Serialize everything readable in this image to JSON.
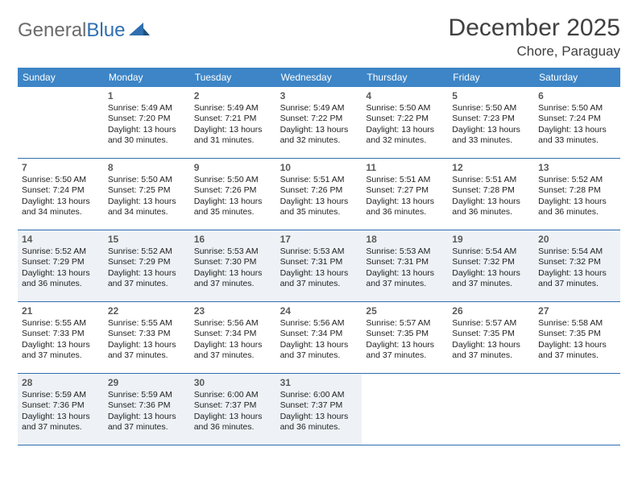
{
  "logo": {
    "text_general": "General",
    "text_blue": "Blue"
  },
  "header": {
    "month": "December 2025",
    "location": "Chore, Paraguay"
  },
  "colors": {
    "header_bar": "#3d85c6",
    "row_border": "#2f6fb0",
    "shaded_bg": "#eef2f6",
    "text": "#222222",
    "daynum": "#5a5a5a",
    "logo_gray": "#6b6b6b",
    "logo_blue": "#2f6fb0"
  },
  "day_names": [
    "Sunday",
    "Monday",
    "Tuesday",
    "Wednesday",
    "Thursday",
    "Friday",
    "Saturday"
  ],
  "weeks": [
    {
      "shaded": false,
      "days": [
        {
          "num": "",
          "lines": []
        },
        {
          "num": "1",
          "lines": [
            "Sunrise: 5:49 AM",
            "Sunset: 7:20 PM",
            "Daylight: 13 hours",
            "and 30 minutes."
          ]
        },
        {
          "num": "2",
          "lines": [
            "Sunrise: 5:49 AM",
            "Sunset: 7:21 PM",
            "Daylight: 13 hours",
            "and 31 minutes."
          ]
        },
        {
          "num": "3",
          "lines": [
            "Sunrise: 5:49 AM",
            "Sunset: 7:22 PM",
            "Daylight: 13 hours",
            "and 32 minutes."
          ]
        },
        {
          "num": "4",
          "lines": [
            "Sunrise: 5:50 AM",
            "Sunset: 7:22 PM",
            "Daylight: 13 hours",
            "and 32 minutes."
          ]
        },
        {
          "num": "5",
          "lines": [
            "Sunrise: 5:50 AM",
            "Sunset: 7:23 PM",
            "Daylight: 13 hours",
            "and 33 minutes."
          ]
        },
        {
          "num": "6",
          "lines": [
            "Sunrise: 5:50 AM",
            "Sunset: 7:24 PM",
            "Daylight: 13 hours",
            "and 33 minutes."
          ]
        }
      ]
    },
    {
      "shaded": false,
      "days": [
        {
          "num": "7",
          "lines": [
            "Sunrise: 5:50 AM",
            "Sunset: 7:24 PM",
            "Daylight: 13 hours",
            "and 34 minutes."
          ]
        },
        {
          "num": "8",
          "lines": [
            "Sunrise: 5:50 AM",
            "Sunset: 7:25 PM",
            "Daylight: 13 hours",
            "and 34 minutes."
          ]
        },
        {
          "num": "9",
          "lines": [
            "Sunrise: 5:50 AM",
            "Sunset: 7:26 PM",
            "Daylight: 13 hours",
            "and 35 minutes."
          ]
        },
        {
          "num": "10",
          "lines": [
            "Sunrise: 5:51 AM",
            "Sunset: 7:26 PM",
            "Daylight: 13 hours",
            "and 35 minutes."
          ]
        },
        {
          "num": "11",
          "lines": [
            "Sunrise: 5:51 AM",
            "Sunset: 7:27 PM",
            "Daylight: 13 hours",
            "and 36 minutes."
          ]
        },
        {
          "num": "12",
          "lines": [
            "Sunrise: 5:51 AM",
            "Sunset: 7:28 PM",
            "Daylight: 13 hours",
            "and 36 minutes."
          ]
        },
        {
          "num": "13",
          "lines": [
            "Sunrise: 5:52 AM",
            "Sunset: 7:28 PM",
            "Daylight: 13 hours",
            "and 36 minutes."
          ]
        }
      ]
    },
    {
      "shaded": true,
      "days": [
        {
          "num": "14",
          "lines": [
            "Sunrise: 5:52 AM",
            "Sunset: 7:29 PM",
            "Daylight: 13 hours",
            "and 36 minutes."
          ]
        },
        {
          "num": "15",
          "lines": [
            "Sunrise: 5:52 AM",
            "Sunset: 7:29 PM",
            "Daylight: 13 hours",
            "and 37 minutes."
          ]
        },
        {
          "num": "16",
          "lines": [
            "Sunrise: 5:53 AM",
            "Sunset: 7:30 PM",
            "Daylight: 13 hours",
            "and 37 minutes."
          ]
        },
        {
          "num": "17",
          "lines": [
            "Sunrise: 5:53 AM",
            "Sunset: 7:31 PM",
            "Daylight: 13 hours",
            "and 37 minutes."
          ]
        },
        {
          "num": "18",
          "lines": [
            "Sunrise: 5:53 AM",
            "Sunset: 7:31 PM",
            "Daylight: 13 hours",
            "and 37 minutes."
          ]
        },
        {
          "num": "19",
          "lines": [
            "Sunrise: 5:54 AM",
            "Sunset: 7:32 PM",
            "Daylight: 13 hours",
            "and 37 minutes."
          ]
        },
        {
          "num": "20",
          "lines": [
            "Sunrise: 5:54 AM",
            "Sunset: 7:32 PM",
            "Daylight: 13 hours",
            "and 37 minutes."
          ]
        }
      ]
    },
    {
      "shaded": false,
      "days": [
        {
          "num": "21",
          "lines": [
            "Sunrise: 5:55 AM",
            "Sunset: 7:33 PM",
            "Daylight: 13 hours",
            "and 37 minutes."
          ]
        },
        {
          "num": "22",
          "lines": [
            "Sunrise: 5:55 AM",
            "Sunset: 7:33 PM",
            "Daylight: 13 hours",
            "and 37 minutes."
          ]
        },
        {
          "num": "23",
          "lines": [
            "Sunrise: 5:56 AM",
            "Sunset: 7:34 PM",
            "Daylight: 13 hours",
            "and 37 minutes."
          ]
        },
        {
          "num": "24",
          "lines": [
            "Sunrise: 5:56 AM",
            "Sunset: 7:34 PM",
            "Daylight: 13 hours",
            "and 37 minutes."
          ]
        },
        {
          "num": "25",
          "lines": [
            "Sunrise: 5:57 AM",
            "Sunset: 7:35 PM",
            "Daylight: 13 hours",
            "and 37 minutes."
          ]
        },
        {
          "num": "26",
          "lines": [
            "Sunrise: 5:57 AM",
            "Sunset: 7:35 PM",
            "Daylight: 13 hours",
            "and 37 minutes."
          ]
        },
        {
          "num": "27",
          "lines": [
            "Sunrise: 5:58 AM",
            "Sunset: 7:35 PM",
            "Daylight: 13 hours",
            "and 37 minutes."
          ]
        }
      ]
    },
    {
      "shaded": true,
      "days": [
        {
          "num": "28",
          "lines": [
            "Sunrise: 5:59 AM",
            "Sunset: 7:36 PM",
            "Daylight: 13 hours",
            "and 37 minutes."
          ]
        },
        {
          "num": "29",
          "lines": [
            "Sunrise: 5:59 AM",
            "Sunset: 7:36 PM",
            "Daylight: 13 hours",
            "and 37 minutes."
          ]
        },
        {
          "num": "30",
          "lines": [
            "Sunrise: 6:00 AM",
            "Sunset: 7:37 PM",
            "Daylight: 13 hours",
            "and 36 minutes."
          ]
        },
        {
          "num": "31",
          "lines": [
            "Sunrise: 6:00 AM",
            "Sunset: 7:37 PM",
            "Daylight: 13 hours",
            "and 36 minutes."
          ]
        },
        {
          "num": "",
          "lines": []
        },
        {
          "num": "",
          "lines": []
        },
        {
          "num": "",
          "lines": []
        }
      ]
    }
  ]
}
